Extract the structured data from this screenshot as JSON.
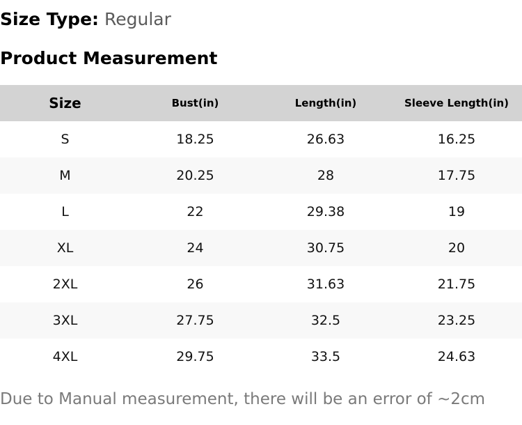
{
  "size_type": {
    "label": "Size Type:",
    "value": "Regular"
  },
  "section_title": "Product Measurement",
  "table": {
    "headers": [
      "Size",
      "Bust(in)",
      "Length(in)",
      "Sleeve Length(in)"
    ],
    "rows": [
      [
        "S",
        "18.25",
        "26.63",
        "16.25"
      ],
      [
        "M",
        "20.25",
        "28",
        "17.75"
      ],
      [
        "L",
        "22",
        "29.38",
        "19"
      ],
      [
        "XL",
        "24",
        "30.75",
        "20"
      ],
      [
        "2XL",
        "26",
        "31.63",
        "21.75"
      ],
      [
        "3XL",
        "27.75",
        "32.5",
        "23.25"
      ],
      [
        "4XL",
        "29.75",
        "33.5",
        "24.63"
      ]
    ]
  },
  "note": "Due to Manual measurement, there will be an error of ~2cm",
  "colors": {
    "header_background": "#d3d3d3",
    "alt_row_background": "#f8f8f8",
    "value_text": "#5b5b5b",
    "note_text": "#7a7a7a"
  }
}
